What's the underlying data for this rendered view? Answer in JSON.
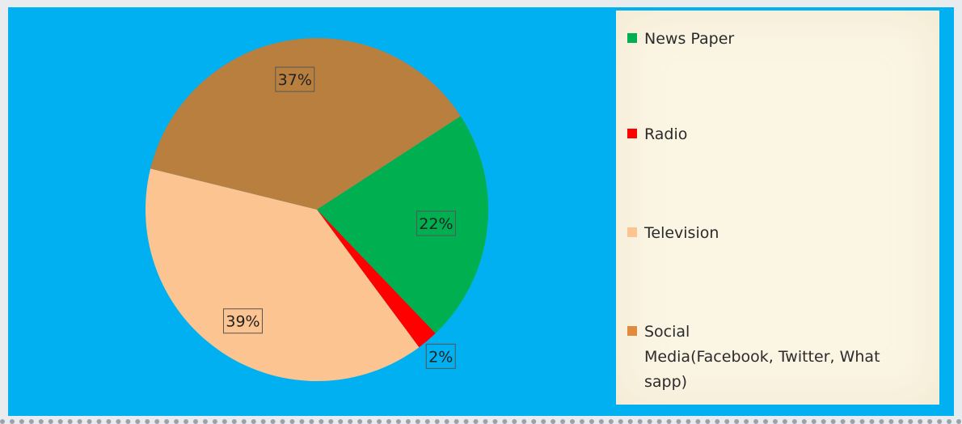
{
  "chart_data": {
    "type": "pie",
    "slices": [
      {
        "label": "News Paper",
        "value": 22,
        "display": "22%",
        "color": "#00b050"
      },
      {
        "label": "Radio",
        "value": 2,
        "display": "2%",
        "color": "#ff0000"
      },
      {
        "label": "Television",
        "value": 39,
        "display": "39%",
        "color": "#fcc490"
      },
      {
        "label": "Social\nMedia(Facebook, Twitter, What\nsapp)",
        "value": 37,
        "display": "37%",
        "color": "#b97f3f"
      }
    ],
    "legend_position": "right",
    "background_color": "#00b0f0",
    "legend_background": "#fbf5e4"
  }
}
